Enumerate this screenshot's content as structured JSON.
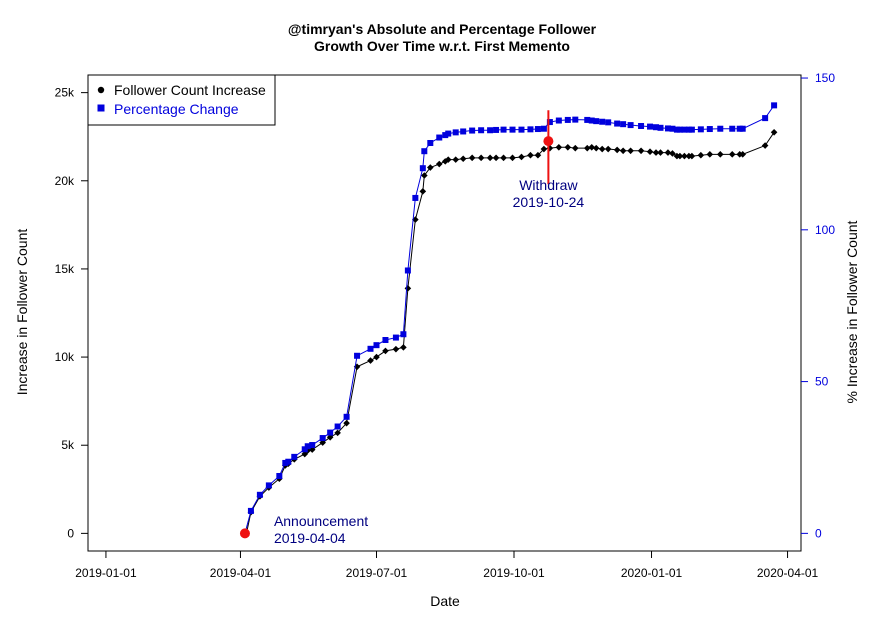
{
  "chart_data": {
    "type": "line",
    "title": "@timryan's Absolute and Percentage Follower Growth Over Time w.r.t. First Memento",
    "title_lines": [
      "@timryan's Absolute and Percentage Follower",
      "Growth Over Time w.r.t. First Memento"
    ],
    "xlabel": "Date",
    "ylabel_left": "Increase in Follower Count",
    "ylabel_right": "% Increase in Follower Count",
    "x_ticks": [
      "2019-01-01",
      "2019-04-01",
      "2019-07-01",
      "2019-10-01",
      "2020-01-01",
      "2020-04-01"
    ],
    "xlim": [
      "2018-12-20",
      "2020-04-10"
    ],
    "y_left_ticks": [
      {
        "v": 0,
        "label": "0"
      },
      {
        "v": 5000,
        "label": "5k"
      },
      {
        "v": 10000,
        "label": "10k"
      },
      {
        "v": 15000,
        "label": "15k"
      },
      {
        "v": 20000,
        "label": "20k"
      },
      {
        "v": 25000,
        "label": "25k"
      }
    ],
    "ylim_left": [
      -1000,
      26000
    ],
    "y_right_ticks": [
      {
        "v": 0,
        "label": "0"
      },
      {
        "v": 50,
        "label": "50"
      },
      {
        "v": 100,
        "label": "100"
      },
      {
        "v": 150,
        "label": "150"
      }
    ],
    "ylim_right": [
      -5.81,
      151
    ],
    "legend_position": "top-left",
    "colors": {
      "absolute": "#000000",
      "percent": "#0000dd",
      "annotation": "#000080",
      "event": "#ee1111"
    },
    "series": [
      {
        "name": "Follower Count Increase",
        "axis": "left",
        "x": [
          "2019-04-05",
          "2019-04-08",
          "2019-04-14",
          "2019-04-20",
          "2019-04-27",
          "2019-05-01",
          "2019-05-03",
          "2019-05-07",
          "2019-05-14",
          "2019-05-16",
          "2019-05-19",
          "2019-05-26",
          "2019-05-31",
          "2019-06-05",
          "2019-06-11",
          "2019-06-18",
          "2019-06-27",
          "2019-07-01",
          "2019-07-07",
          "2019-07-14",
          "2019-07-19",
          "2019-07-22",
          "2019-07-27",
          "2019-08-01",
          "2019-08-02",
          "2019-08-06",
          "2019-08-12",
          "2019-08-16",
          "2019-08-18",
          "2019-08-23",
          "2019-08-28",
          "2019-09-03",
          "2019-09-09",
          "2019-09-15",
          "2019-09-19",
          "2019-09-24",
          "2019-09-30",
          "2019-10-06",
          "2019-10-12",
          "2019-10-17",
          "2019-10-21",
          "2019-10-25",
          "2019-10-31",
          "2019-11-06",
          "2019-11-11",
          "2019-11-19",
          "2019-11-22",
          "2019-11-25",
          "2019-11-29",
          "2019-12-03",
          "2019-12-09",
          "2019-12-13",
          "2019-12-18",
          "2019-12-25",
          "2019-12-31",
          "2020-01-04",
          "2020-01-07",
          "2020-01-12",
          "2020-01-15",
          "2020-01-18",
          "2020-01-20",
          "2020-01-23",
          "2020-01-26",
          "2020-01-28",
          "2020-02-03",
          "2020-02-09",
          "2020-02-16",
          "2020-02-24",
          "2020-02-29",
          "2020-03-02",
          "2020-03-17",
          "2020-03-23"
        ],
        "y": [
          0,
          1200,
          2100,
          2600,
          3100,
          3850,
          3950,
          4200,
          4500,
          4700,
          4750,
          5150,
          5450,
          5700,
          6250,
          9450,
          9800,
          10000,
          10350,
          10450,
          10550,
          13900,
          17800,
          19400,
          20300,
          20750,
          20950,
          21100,
          21200,
          21200,
          21250,
          21300,
          21300,
          21300,
          21300,
          21300,
          21300,
          21350,
          21450,
          21450,
          21800,
          21850,
          21900,
          21900,
          21850,
          21850,
          21900,
          21850,
          21800,
          21800,
          21750,
          21700,
          21700,
          21700,
          21650,
          21600,
          21600,
          21600,
          21550,
          21400,
          21400,
          21400,
          21400,
          21400,
          21450,
          21500,
          21500,
          21500,
          21500,
          21500,
          22000,
          22750
        ]
      },
      {
        "name": "Percentage Change",
        "axis": "right",
        "x": [
          "2019-04-04",
          "2019-04-08",
          "2019-04-14",
          "2019-04-20",
          "2019-04-27",
          "2019-05-01",
          "2019-05-03",
          "2019-05-07",
          "2019-05-14",
          "2019-05-16",
          "2019-05-19",
          "2019-05-26",
          "2019-05-31",
          "2019-06-05",
          "2019-06-11",
          "2019-06-18",
          "2019-06-27",
          "2019-07-01",
          "2019-07-07",
          "2019-07-14",
          "2019-07-19",
          "2019-07-22",
          "2019-07-27",
          "2019-08-01",
          "2019-08-02",
          "2019-08-06",
          "2019-08-12",
          "2019-08-16",
          "2019-08-18",
          "2019-08-23",
          "2019-08-28",
          "2019-09-03",
          "2019-09-09",
          "2019-09-15",
          "2019-09-19",
          "2019-09-24",
          "2019-09-30",
          "2019-10-06",
          "2019-10-12",
          "2019-10-17",
          "2019-10-21",
          "2019-10-25",
          "2019-10-31",
          "2019-11-06",
          "2019-11-11",
          "2019-11-19",
          "2019-11-22",
          "2019-11-25",
          "2019-11-29",
          "2019-12-03",
          "2019-12-09",
          "2019-12-13",
          "2019-12-18",
          "2019-12-25",
          "2019-12-31",
          "2020-01-04",
          "2020-01-07",
          "2020-01-12",
          "2020-01-15",
          "2020-01-18",
          "2020-01-20",
          "2020-01-23",
          "2020-01-26",
          "2020-01-28",
          "2020-02-03",
          "2020-02-09",
          "2020-02-16",
          "2020-02-24",
          "2020-02-29",
          "2020-03-02",
          "2020-03-17",
          "2020-03-23"
        ],
        "y": [
          0,
          7.4,
          12.7,
          15.8,
          18.9,
          23.2,
          23.6,
          25.2,
          27.7,
          28.7,
          29.1,
          31.4,
          33.2,
          35.2,
          38.4,
          58.5,
          60.8,
          62.0,
          63.7,
          64.5,
          65.6,
          86.6,
          110.5,
          120.3,
          125.9,
          128.6,
          130.4,
          131.2,
          131.7,
          132.1,
          132.4,
          132.7,
          132.8,
          132.8,
          132.9,
          133.0,
          133.0,
          133.0,
          133.1,
          133.2,
          133.3,
          135.5,
          136.0,
          136.2,
          136.3,
          136.2,
          136.0,
          135.8,
          135.6,
          135.4,
          135.0,
          134.8,
          134.5,
          134.2,
          134.0,
          133.8,
          133.6,
          133.4,
          133.3,
          133.0,
          133.0,
          133.0,
          133.0,
          133.0,
          133.1,
          133.2,
          133.3,
          133.3,
          133.3,
          133.3,
          136.8,
          141.0
        ]
      }
    ],
    "annotations": [
      {
        "label": "Announcement",
        "date_label": "2019-04-04",
        "x": "2019-04-04"
      },
      {
        "label": "Withdraw",
        "date_label": "2019-10-24",
        "x": "2019-10-24"
      }
    ]
  }
}
